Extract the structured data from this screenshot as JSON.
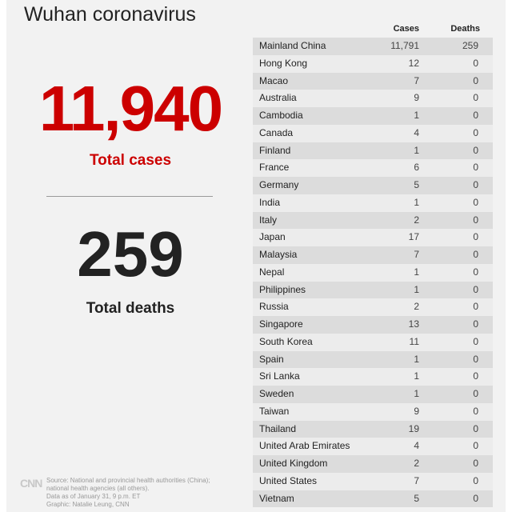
{
  "header": {
    "title": "Wuhan coronavirus"
  },
  "summary": {
    "total_cases_value": "11,940",
    "total_cases_label": "Total cases",
    "total_deaths_value": "259",
    "total_deaths_label": "Total deaths"
  },
  "footer": {
    "logo": "CNN",
    "source_lines": [
      "Source: National and provincial health authorities (China);",
      "national health agencies (all others).",
      "Data as of January 31, 9 p.m. ET",
      "Graphic: Natalie Leung, CNN"
    ]
  },
  "colors": {
    "accent": "#cc0000",
    "row_dark": "#dcdcdc",
    "row_light": "#ececec"
  },
  "chart_data": {
    "type": "table",
    "title": "Wuhan coronavirus",
    "columns": [
      "",
      "Cases",
      "Deaths"
    ],
    "rows": [
      [
        "Mainland China",
        "11,791",
        "259"
      ],
      [
        "Hong Kong",
        "12",
        "0"
      ],
      [
        "Macao",
        "7",
        "0"
      ],
      [
        "Australia",
        "9",
        "0"
      ],
      [
        "Cambodia",
        "1",
        "0"
      ],
      [
        "Canada",
        "4",
        "0"
      ],
      [
        "Finland",
        "1",
        "0"
      ],
      [
        "France",
        "6",
        "0"
      ],
      [
        "Germany",
        "5",
        "0"
      ],
      [
        "India",
        "1",
        "0"
      ],
      [
        "Italy",
        "2",
        "0"
      ],
      [
        "Japan",
        "17",
        "0"
      ],
      [
        "Malaysia",
        "7",
        "0"
      ],
      [
        "Nepal",
        "1",
        "0"
      ],
      [
        "Philippines",
        "1",
        "0"
      ],
      [
        "Russia",
        "2",
        "0"
      ],
      [
        "Singapore",
        "13",
        "0"
      ],
      [
        "South Korea",
        "11",
        "0"
      ],
      [
        "Spain",
        "1",
        "0"
      ],
      [
        "Sri Lanka",
        "1",
        "0"
      ],
      [
        "Sweden",
        "1",
        "0"
      ],
      [
        "Taiwan",
        "9",
        "0"
      ],
      [
        "Thailand",
        "19",
        "0"
      ],
      [
        "United Arab Emirates",
        "4",
        "0"
      ],
      [
        "United Kingdom",
        "2",
        "0"
      ],
      [
        "United States",
        "7",
        "0"
      ],
      [
        "Vietnam",
        "5",
        "0"
      ]
    ]
  }
}
